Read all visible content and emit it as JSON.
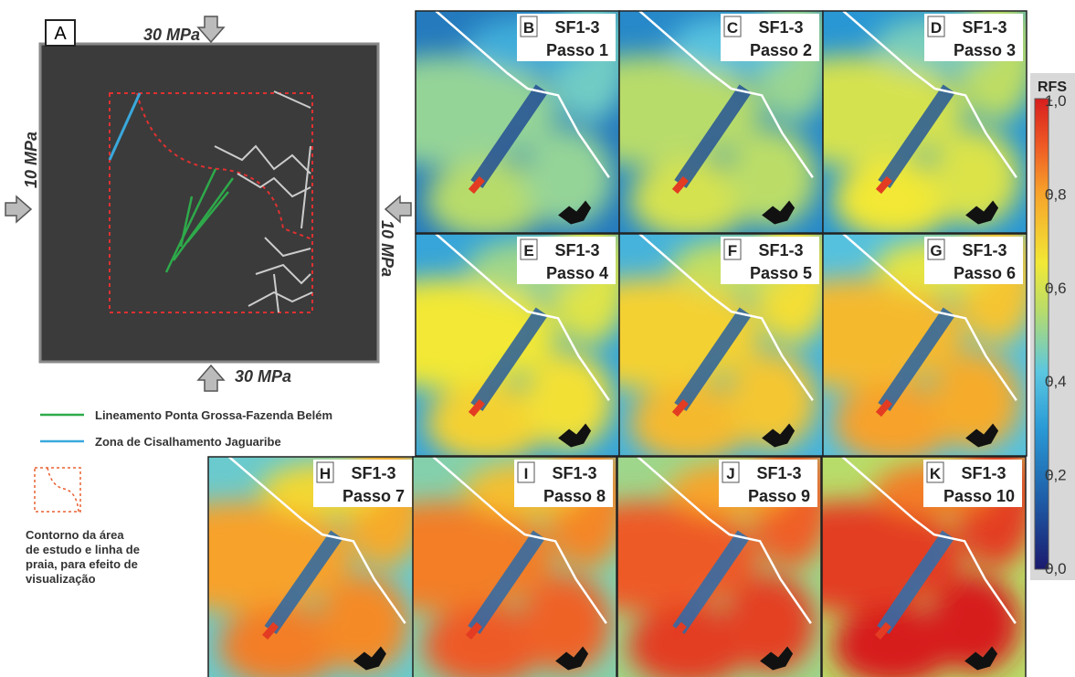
{
  "panel_a": {
    "label": "A",
    "load_top": "30 MPa",
    "load_bottom": "30 MPa",
    "load_left": "10 MPa",
    "load_right": "10 MPa"
  },
  "legend": {
    "items": [
      {
        "label": "Lineamento Ponta Grossa-Fazenda Belém",
        "color": "#2eaa4a"
      },
      {
        "label": "Zona de Cisalhamento Jaguaribe",
        "color": "#3aa8dc"
      }
    ],
    "outline_note": [
      "Contorno da área",
      "de estudo e linha de",
      "praia, para efeito de",
      "visualização"
    ]
  },
  "panels": [
    {
      "label": "B",
      "model": "SF1-3",
      "step": "Passo 1"
    },
    {
      "label": "C",
      "model": "SF1-3",
      "step": "Passo 2"
    },
    {
      "label": "D",
      "model": "SF1-3",
      "step": "Passo 3"
    },
    {
      "label": "E",
      "model": "SF1-3",
      "step": "Passo 4"
    },
    {
      "label": "F",
      "model": "SF1-3",
      "step": "Passo 5"
    },
    {
      "label": "G",
      "model": "SF1-3",
      "step": "Passo 6"
    },
    {
      "label": "H",
      "model": "SF1-3",
      "step": "Passo 7"
    },
    {
      "label": "I",
      "model": "SF1-3",
      "step": "Passo 8"
    },
    {
      "label": "J",
      "model": "SF1-3",
      "step": "Passo 9"
    },
    {
      "label": "K",
      "model": "SF1-3",
      "step": "Passo 10"
    }
  ],
  "colorbar": {
    "title": "RFS",
    "ticks": [
      {
        "value": 0,
        "label": "0,0"
      },
      {
        "value": 0.2,
        "label": "0,2"
      },
      {
        "value": 0.4,
        "label": "0,4"
      },
      {
        "value": 0.6,
        "label": "0,6"
      },
      {
        "value": 0.8,
        "label": "0,8"
      },
      {
        "value": 1,
        "label": "1,0"
      }
    ]
  }
}
